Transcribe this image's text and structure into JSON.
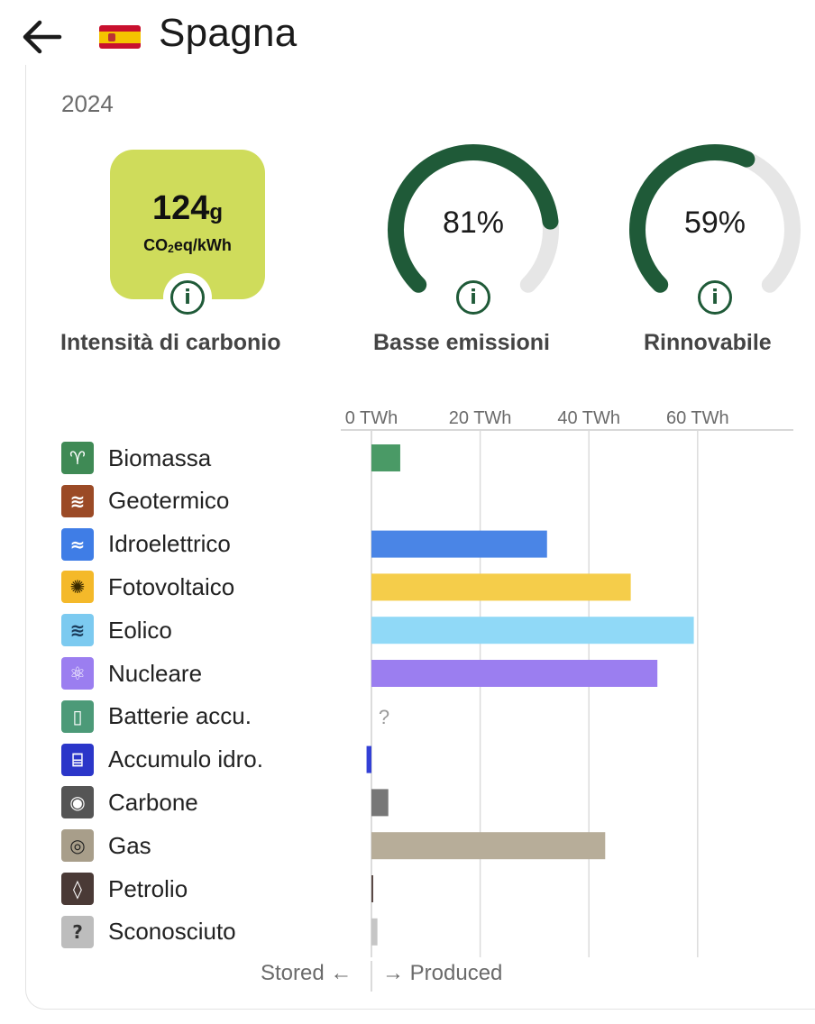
{
  "header": {
    "country": "Spagna"
  },
  "year": "2024",
  "intensity": {
    "value": "124",
    "unit_g": "g",
    "unit_co2": "CO",
    "unit_sub": "2",
    "unit_rest": "eq/kWh",
    "label": "Intensità di carbonio",
    "color": "#cfdc5b"
  },
  "low_emissions": {
    "value_text": "81%",
    "fraction": 0.81,
    "label": "Basse emissioni"
  },
  "renewable": {
    "value_text": "59%",
    "fraction": 0.59,
    "label": "Rinnovabile"
  },
  "footer": {
    "stored": "Stored ←",
    "produced": "→ Produced"
  },
  "chart_data": {
    "type": "bar",
    "orientation": "horizontal",
    "x_ticks": [
      "0 TWh",
      "20 TWh",
      "40 TWh",
      "60 TWh"
    ],
    "x_tick_values": [
      0,
      20,
      40,
      60
    ],
    "xlim": [
      -1,
      78
    ],
    "categories": [
      "Biomassa",
      "Geotermico",
      "Idroelettrico",
      "Fotovoltaico",
      "Eolico",
      "Nucleare",
      "Batterie accu.",
      "Accumulo idro.",
      "Carbone",
      "Gas",
      "Petrolio",
      "Sconosciuto"
    ],
    "values": [
      5.3,
      0,
      32.3,
      47.7,
      59.3,
      52.6,
      null,
      -0.9,
      3.1,
      43.0,
      0.3,
      1.1
    ],
    "colors": [
      "#4a9a66",
      "#a0522d",
      "#4a85e6",
      "#f5cd4a",
      "#90d9f7",
      "#9b7ef0",
      "#4c9a78",
      "#3340d6",
      "#777777",
      "#b7ad99",
      "#5a4a46",
      "#c6c6c6"
    ],
    "missing_label": "?",
    "icons": [
      "sprout-icon",
      "geothermal-icon",
      "water-icon",
      "sun-icon",
      "wind-icon",
      "atom-icon",
      "battery-icon",
      "pumped-storage-icon",
      "coal-icon",
      "gas-icon",
      "oil-icon",
      "question-icon"
    ],
    "icon_glyphs": [
      "♈",
      "≋",
      "≈",
      "✺",
      "≋",
      "⚛",
      "▯",
      "⌸",
      "◉",
      "◎",
      "◊",
      "?"
    ],
    "icon_bg": [
      "#3f8a55",
      "#9b4a26",
      "#3f7de6",
      "#f4b92a",
      "#7ccaf0",
      "#9b7ef0",
      "#4c9a78",
      "#2b36c9",
      "#555555",
      "#a89e8a",
      "#4a3a36",
      "#bdbdbd"
    ],
    "icon_fg": [
      "#ffffff",
      "#ffffff",
      "#ffffff",
      "#3a2a00",
      "#1b3b5a",
      "#ffffff",
      "#ffffff",
      "#ffffff",
      "#ffffff",
      "#222222",
      "#ffffff",
      "#333333"
    ]
  },
  "colors": {
    "gauge_fill": "#1f5a38",
    "gauge_track": "#e6e6e6",
    "info": "#1f5a38"
  }
}
